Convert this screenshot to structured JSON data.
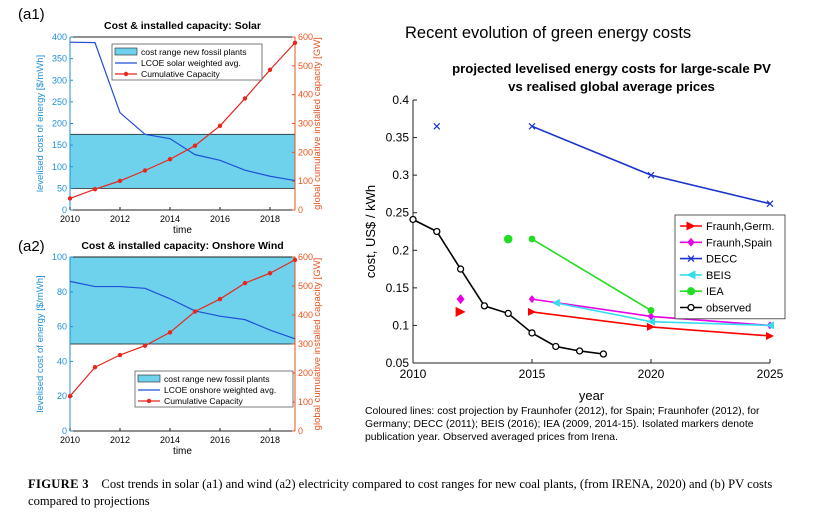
{
  "panels": {
    "a1_tag": "(a1)",
    "a2_tag": "(a2)"
  },
  "heading": "Recent evolution of green energy costs",
  "note": "Coloured lines: cost projection by Fraunhofer (2012), for Spain; Fraunhofer (2012), for Germany; DECC (2011); BEIS (2016); IEA (2009, 2014-15). Isolated markers denote publication year. Observed averaged prices from Irena.",
  "caption": {
    "label": "FIGURE 3",
    "text": "Cost trends in solar (a1) and wind (a2) electricity compared to cost ranges for new coal plants, (from IRENA, 2020) and (b) PV costs compared to projections"
  },
  "colors": {
    "blue": "#1f4fd6",
    "red": "#e8261e",
    "cyan_band": "#6fd2ec",
    "axis_blue": "#1f8fd6",
    "axis_red": "#e8531e"
  },
  "chart_data": [
    {
      "type": "line",
      "title": "Cost & installed capacity: Solar",
      "xlabel": "time",
      "ylabel_left": "levelised cost of energy [$/mWh]",
      "ylabel_right": "global cumulative installed capacity [GW]",
      "xlim": [
        2010,
        2019
      ],
      "ylim_left": [
        0,
        400
      ],
      "ylim_right": [
        0,
        600
      ],
      "xticks": [
        "2010",
        "2012",
        "2014",
        "2016",
        "2018"
      ],
      "yticks_left": [
        "0",
        "50",
        "100",
        "150",
        "200",
        "250",
        "300",
        "350",
        "400"
      ],
      "yticks_right": [
        "0",
        "100",
        "200",
        "300",
        "400",
        "500",
        "600"
      ],
      "legend": [
        "cost range new fossil plants",
        "LCOE solar weighted avg.",
        "Cumulative Capacity"
      ],
      "band": [
        50,
        175
      ],
      "series": [
        {
          "name": "LCOE solar weighted avg.",
          "axis": "left",
          "x": [
            2010,
            2011,
            2012,
            2013,
            2014,
            2015,
            2016,
            2017,
            2018,
            2019
          ],
          "values": [
            388,
            387,
            225,
            175,
            165,
            128,
            115,
            92,
            78,
            68
          ]
        },
        {
          "name": "Cumulative Capacity",
          "axis": "right",
          "x": [
            2010,
            2011,
            2012,
            2013,
            2014,
            2015,
            2016,
            2017,
            2018,
            2019
          ],
          "values": [
            40,
            72,
            101,
            137,
            176,
            223,
            292,
            387,
            486,
            580
          ]
        }
      ]
    },
    {
      "type": "line",
      "title": "Cost & installed capacity: Onshore Wind",
      "xlabel": "time",
      "ylabel_left": "levelised cost of energy [$/mWh]",
      "ylabel_right": "global cumulative installed capacity [GW]",
      "xlim": [
        2010,
        2019
      ],
      "ylim_left": [
        0,
        100
      ],
      "ylim_right": [
        0,
        600
      ],
      "xticks": [
        "2010",
        "2012",
        "2014",
        "2016",
        "2018"
      ],
      "yticks_left": [
        "0",
        "20",
        "40",
        "60",
        "80",
        "100"
      ],
      "yticks_right": [
        "0",
        "100",
        "200",
        "300",
        "400",
        "500",
        "600"
      ],
      "legend": [
        "cost range new fossil plants",
        "LCOE onshore weighted avg.",
        "Cumulative Capacity"
      ],
      "band": [
        50,
        100
      ],
      "series": [
        {
          "name": "LCOE onshore weighted avg.",
          "axis": "left",
          "x": [
            2010,
            2011,
            2012,
            2013,
            2014,
            2015,
            2016,
            2017,
            2018,
            2019
          ],
          "values": [
            86,
            83,
            83,
            82,
            76,
            69,
            66,
            64,
            58,
            53
          ]
        },
        {
          "name": "Cumulative Capacity",
          "axis": "right",
          "x": [
            2010,
            2011,
            2012,
            2013,
            2014,
            2015,
            2016,
            2017,
            2018,
            2019
          ],
          "values": [
            120,
            220,
            262,
            294,
            340,
            412,
            455,
            510,
            544,
            590
          ]
        }
      ]
    },
    {
      "type": "line",
      "title": "projected levelised energy costs for large-scale PV vs realised global average prices",
      "xlabel": "year",
      "ylabel": "cost, US$ / kWh",
      "xlim": [
        2010,
        2025
      ],
      "ylim": [
        0.05,
        0.4
      ],
      "xticks": [
        "2010",
        "2015",
        "2020",
        "2025"
      ],
      "yticks": [
        "0.05",
        "0.1",
        "0.15",
        "0.2",
        "0.25",
        "0.3",
        "0.35",
        "0.4"
      ],
      "legend": [
        "Fraunh,Germ.",
        "Fraunh,Spain",
        "DECC",
        "BEIS",
        "IEA",
        "observed"
      ],
      "series": [
        {
          "name": "Fraunh,Germ.",
          "color": "#ff0000",
          "marker": "triangle-right",
          "x": [
            2015,
            2020,
            2025
          ],
          "values": [
            0.118,
            0.098,
            0.086
          ],
          "isolated": {
            "x": 2012,
            "y": 0.118
          }
        },
        {
          "name": "Fraunh,Spain",
          "color": "#e600e6",
          "marker": "diamond",
          "x": [
            2015,
            2020,
            2025
          ],
          "values": [
            0.135,
            0.112,
            0.1
          ],
          "isolated": {
            "x": 2012,
            "y": 0.135
          }
        },
        {
          "name": "DECC",
          "color": "#1a33cc",
          "marker": "x",
          "x": [
            2015,
            2020,
            2025
          ],
          "values": [
            0.365,
            0.3,
            0.262
          ],
          "isolated": {
            "x": 2011,
            "y": 0.365
          }
        },
        {
          "name": "BEIS",
          "color": "#33ddee",
          "marker": "triangle-left",
          "x": [
            2016,
            2020,
            2025
          ],
          "values": [
            0.13,
            0.105,
            0.1
          ]
        },
        {
          "name": "IEA",
          "color": "#22dd22",
          "marker": "circle",
          "x": [
            2015,
            2020
          ],
          "values": [
            0.215,
            0.12
          ],
          "isolated": {
            "x": 2014,
            "y": 0.215
          }
        },
        {
          "name": "observed",
          "color": "#000000",
          "marker": "circle-open",
          "x": [
            2010,
            2011,
            2012,
            2013,
            2014,
            2015,
            2016,
            2017,
            2018
          ],
          "values": [
            0.241,
            0.225,
            0.175,
            0.126,
            0.116,
            0.09,
            0.072,
            0.066,
            0.062
          ]
        }
      ]
    }
  ]
}
